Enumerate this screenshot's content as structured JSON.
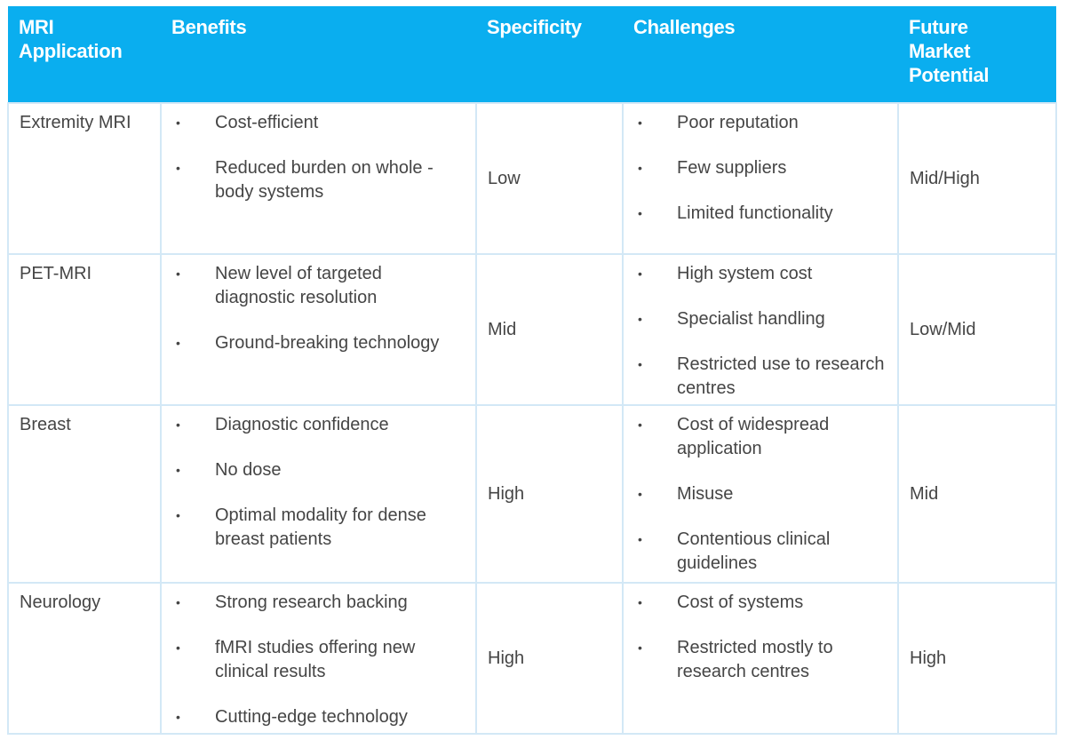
{
  "headers": [
    "MRI Application",
    "Benefits",
    "Specificity",
    "Challenges",
    "Future Market Potential"
  ],
  "rows": [
    {
      "application": "Extremity MRI",
      "benefits": [
        "Cost-efficient",
        "Reduced burden on whole -body systems"
      ],
      "specificity": "Low",
      "challenges": [
        "Poor reputation",
        "Few suppliers",
        "Limited functionality"
      ],
      "potential": "Mid/High"
    },
    {
      "application": "PET-MRI",
      "benefits": [
        "New level of targeted diagnostic resolution",
        "Ground-breaking technology"
      ],
      "specificity": "Mid",
      "challenges": [
        "High system cost",
        "Specialist handling",
        "Restricted use to research centres"
      ],
      "potential": "Low/Mid"
    },
    {
      "application": "Breast",
      "benefits": [
        "Diagnostic confidence",
        "No dose",
        "Optimal modality for dense breast patients"
      ],
      "specificity": "High",
      "challenges": [
        "Cost of widespread application",
        "Misuse",
        "Contentious clinical guidelines"
      ],
      "potential": "Mid"
    },
    {
      "application": "Neurology",
      "benefits": [
        "Strong research backing",
        "fMRI studies offering new clinical results",
        "Cutting-edge technology"
      ],
      "specificity": "High",
      "challenges": [
        "Cost of systems",
        "Restricted mostly to research centres"
      ],
      "potential": "High"
    }
  ],
  "bullet": "•",
  "colors": {
    "header": "#0aaeef",
    "border": "#d3e8f6",
    "text": "#454545"
  }
}
